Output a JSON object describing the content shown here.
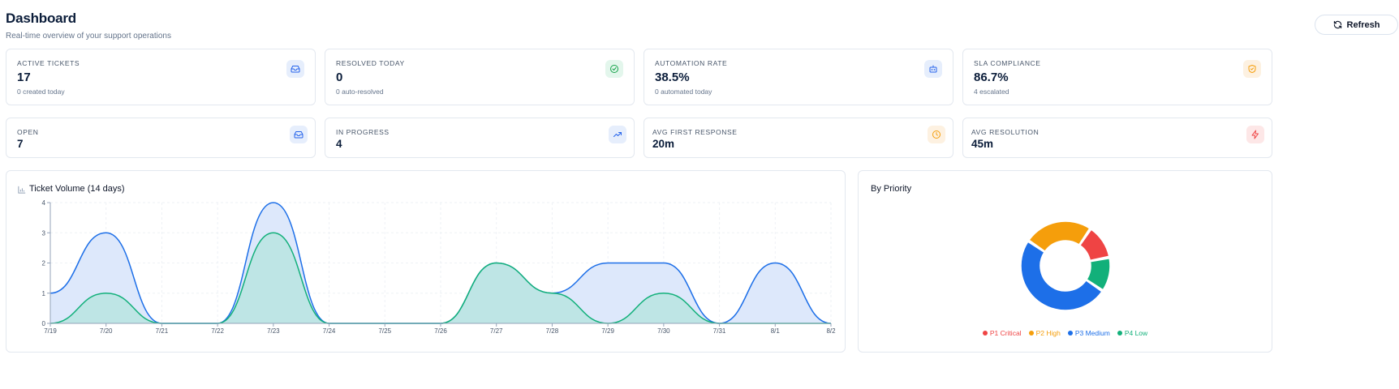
{
  "header": {
    "title": "Dashboard",
    "subtitle": "Real-time overview of your support operations",
    "refresh_label": "Refresh"
  },
  "stats_row1": [
    {
      "label": "ACTIVE TICKETS",
      "value": "17",
      "sub": "0 created today",
      "icon": "inbox-icon",
      "color": "#2563eb"
    },
    {
      "label": "RESOLVED TODAY",
      "value": "0",
      "sub": "0 auto-resolved",
      "icon": "check-circle-icon",
      "color": "#16a34a"
    },
    {
      "label": "AUTOMATION RATE",
      "value": "38.5%",
      "sub": "0 automated today",
      "icon": "bot-icon",
      "color": "#2563eb"
    },
    {
      "label": "SLA COMPLIANCE",
      "value": "86.7%",
      "sub": "4 escalated",
      "icon": "shield-check-icon",
      "color": "#f59e0b"
    }
  ],
  "stats_row2": [
    {
      "label": "OPEN",
      "value": "7",
      "icon": "inbox-icon",
      "color": "#2563eb"
    },
    {
      "label": "IN PROGRESS",
      "value": "4",
      "icon": "trending-up-icon",
      "color": "#2563eb"
    },
    {
      "label": "AVG FIRST RESPONSE",
      "value": "20m",
      "icon": "clock-icon",
      "color": "#f59e0b"
    },
    {
      "label": "AVG RESOLUTION",
      "value": "45m",
      "icon": "zap-icon",
      "color": "#ef4444"
    }
  ],
  "volume_panel": {
    "title": "Ticket Volume (14 days)"
  },
  "priority_panel": {
    "title": "By Priority",
    "legend": [
      "P1 Critical",
      "P2 High",
      "P3 Medium",
      "P4 Low"
    ]
  },
  "chart_data": [
    {
      "type": "area",
      "title": "Ticket Volume (14 days)",
      "x": [
        "7/19",
        "7/20",
        "7/21",
        "7/22",
        "7/23",
        "7/24",
        "7/25",
        "7/26",
        "7/27",
        "7/28",
        "7/29",
        "7/30",
        "7/31",
        "8/1",
        "8/2"
      ],
      "ylim": [
        0,
        4
      ],
      "yticks": [
        0,
        1,
        2,
        3,
        4
      ],
      "grid": true,
      "series": [
        {
          "values": [
            1,
            3,
            0,
            0,
            4,
            0,
            0,
            0,
            2,
            1,
            2,
            2,
            0,
            2,
            0
          ],
          "color": "#1d6fe8",
          "fill": "#dbe7fb"
        },
        {
          "values": [
            0,
            1,
            0,
            0,
            3,
            0,
            0,
            0,
            2,
            1,
            0,
            1,
            0,
            0,
            0
          ],
          "color": "#12b07a",
          "fill": "#b9e4e0"
        }
      ]
    },
    {
      "type": "pie",
      "title": "By Priority",
      "categories": [
        "P1 Critical",
        "P2 High",
        "P3 Medium",
        "P4 Low"
      ],
      "values": [
        2,
        4,
        8,
        2
      ],
      "colors": [
        "#ef4444",
        "#f59e0b",
        "#1d6fe8",
        "#12b07a"
      ],
      "donut": true,
      "legend": "bottom"
    }
  ]
}
